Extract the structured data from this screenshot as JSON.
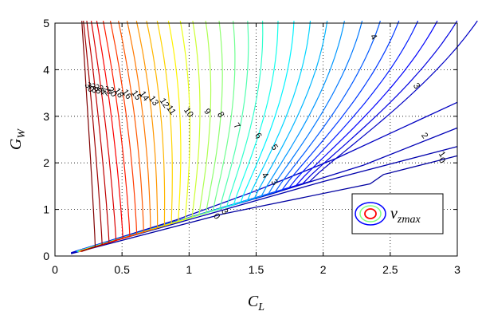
{
  "chart_data": {
    "type": "line",
    "title": "",
    "xlabel": "C",
    "xlabel_sub": "L",
    "ylabel": "G",
    "ylabel_sub": "W",
    "xlim": [
      0,
      3
    ],
    "ylim": [
      0,
      5
    ],
    "x_ticks": [
      0,
      0.5,
      1,
      1.5,
      2,
      2.5,
      3
    ],
    "x_tick_labels": [
      "0",
      "0.5",
      "1",
      "1.5",
      "2",
      "2.5",
      "3"
    ],
    "y_ticks": [
      0,
      1,
      2,
      3,
      4,
      5
    ],
    "y_tick_labels": [
      "0",
      "1",
      "2",
      "3",
      "4",
      "5"
    ],
    "grid": true,
    "grid_style": "dotted",
    "legend": {
      "placement": "bottom-right",
      "text": "v",
      "text_sub": "zmax"
    },
    "colormap": [
      "#00008f",
      "#0000ff",
      "#0080ff",
      "#00ffff",
      "#80ff80",
      "#ffff00",
      "#ff8000",
      "#ff0000",
      "#800000"
    ],
    "contour_levels_count": 32,
    "contour_labels": [
      {
        "text": "0",
        "x": 2.87,
        "y": 2.02
      },
      {
        "text": "1",
        "x": 2.87,
        "y": 2.15
      },
      {
        "text": "2",
        "x": 2.74,
        "y": 2.55
      },
      {
        "text": "3",
        "x": 2.68,
        "y": 3.62
      },
      {
        "text": "4",
        "x": 2.36,
        "y": 4.67
      },
      {
        "text": "0",
        "x": 1.19,
        "y": 0.82
      },
      {
        "text": "3",
        "x": 1.25,
        "y": 0.92
      },
      {
        "text": "3",
        "x": 1.62,
        "y": 1.55
      },
      {
        "text": "4",
        "x": 1.55,
        "y": 1.7
      },
      {
        "text": "5",
        "x": 1.62,
        "y": 2.3
      },
      {
        "text": "6",
        "x": 1.5,
        "y": 2.55
      },
      {
        "text": "7",
        "x": 1.34,
        "y": 2.76
      },
      {
        "text": "8",
        "x": 1.22,
        "y": 3.0
      },
      {
        "text": "9",
        "x": 1.12,
        "y": 3.07
      },
      {
        "text": "10",
        "x": 0.98,
        "y": 3.05
      },
      {
        "text": "11",
        "x": 0.85,
        "y": 3.1
      },
      {
        "text": "12",
        "x": 0.8,
        "y": 3.25
      },
      {
        "text": "13",
        "x": 0.72,
        "y": 3.3
      },
      {
        "text": "14",
        "x": 0.65,
        "y": 3.4
      },
      {
        "text": "15",
        "x": 0.59,
        "y": 3.42
      },
      {
        "text": "16",
        "x": 0.52,
        "y": 3.44
      },
      {
        "text": "18",
        "x": 0.46,
        "y": 3.47
      },
      {
        "text": "20",
        "x": 0.41,
        "y": 3.49
      },
      {
        "text": "22",
        "x": 0.37,
        "y": 3.51
      },
      {
        "text": "24",
        "x": 0.33,
        "y": 3.53
      },
      {
        "text": "26",
        "x": 0.3,
        "y": 3.55
      },
      {
        "text": "28",
        "x": 0.27,
        "y": 3.57
      },
      {
        "text": "30",
        "x": 0.24,
        "y": 3.59
      }
    ]
  }
}
